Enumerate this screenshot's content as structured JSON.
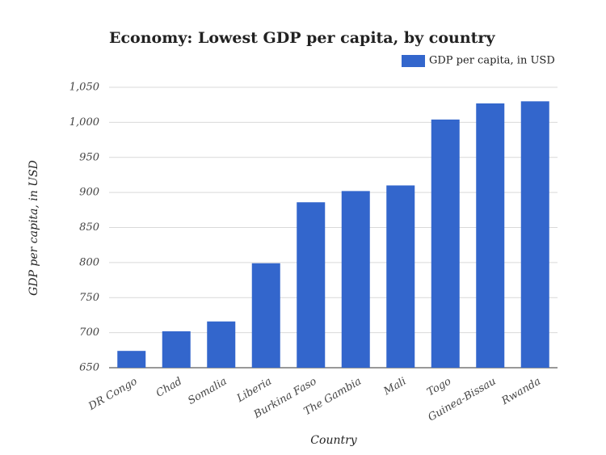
{
  "chart_data": {
    "type": "bar",
    "title": "Economy: Lowest GDP per capita, by country",
    "x_label": "Country",
    "y_label": "GDP per capita, in USD",
    "categories": [
      "DR Congo",
      "Chad",
      "Somalia",
      "Liberia",
      "Burkina Faso",
      "The Gambia",
      "Mali",
      "Togo",
      "Guinea-Bissau",
      "Rwanda"
    ],
    "series": [
      {
        "name": "GDP per capita, in USD",
        "color": "#3366cc",
        "values": [
          674,
          702,
          716,
          799,
          886,
          902,
          910,
          1004,
          1027,
          1030
        ]
      }
    ],
    "ylim": [
      650,
      1050
    ],
    "yticks": [
      650,
      700,
      750,
      800,
      850,
      900,
      950,
      {
        "value": 1000,
        "label": "1,000"
      },
      {
        "value": 1050,
        "label": "1,050"
      }
    ],
    "grid": true,
    "legend": "top-right"
  }
}
